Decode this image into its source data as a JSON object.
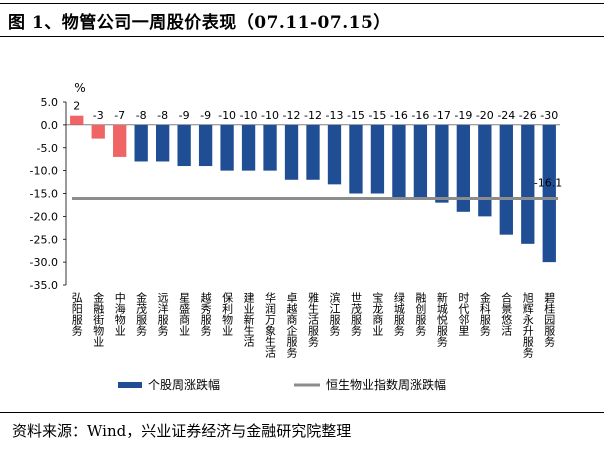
{
  "title": "图 1、物管公司一周股价表现（07.11-07.15）",
  "source": "资料来源：Wind，兴业证券经济与金融研究院整理",
  "colors": {
    "bar_default": "#1f4e95",
    "bar_highlight": "#ef6464",
    "index_line": "#8c8c8c"
  },
  "chart_data": {
    "type": "bar",
    "unit_label": "%",
    "ylim": [
      -35,
      5
    ],
    "yticks": [
      "5.0",
      "0.0",
      "-5.0",
      "-10.0",
      "-15.0",
      "-20.0",
      "-25.0",
      "-30.0",
      "-35.0"
    ],
    "categories": [
      "弘阳服务",
      "金融街物业",
      "中海物业",
      "金茂服务",
      "远洋服务",
      "星盛商业",
      "越秀服务",
      "保利物业",
      "建业新生活",
      "华润万象生活",
      "卓越商企服务",
      "雅生活服务",
      "滨江服务",
      "世茂服务",
      "宝龙商业",
      "绿城服务",
      "融创服务",
      "新城悦服务",
      "时代邻里",
      "金科服务",
      "合景悠活",
      "旭辉永升服务",
      "碧桂园服务"
    ],
    "values": [
      2,
      -3,
      -7,
      -8,
      -8,
      -9,
      -9,
      -10,
      -10,
      -10,
      -12,
      -12,
      -13,
      -15,
      -15,
      -16,
      -16,
      -17,
      -19,
      -20,
      -24,
      -26,
      -30
    ],
    "value_labels": [
      "2",
      "-3",
      "-7",
      "-8",
      "-8",
      "-9",
      "-9",
      "-10",
      "-10",
      "-10",
      "-12",
      "-12",
      "-13",
      "-15",
      "-15",
      "-16",
      "-16",
      "-17",
      "-19",
      "-20",
      "-24",
      "-26",
      "-30"
    ],
    "highlight_count": 3,
    "index_value": -16.1,
    "index_label": "-16.1",
    "legend": [
      "个股周涨跌幅",
      "恒生物业指数周涨跌幅"
    ],
    "legend_position": "bottom"
  }
}
